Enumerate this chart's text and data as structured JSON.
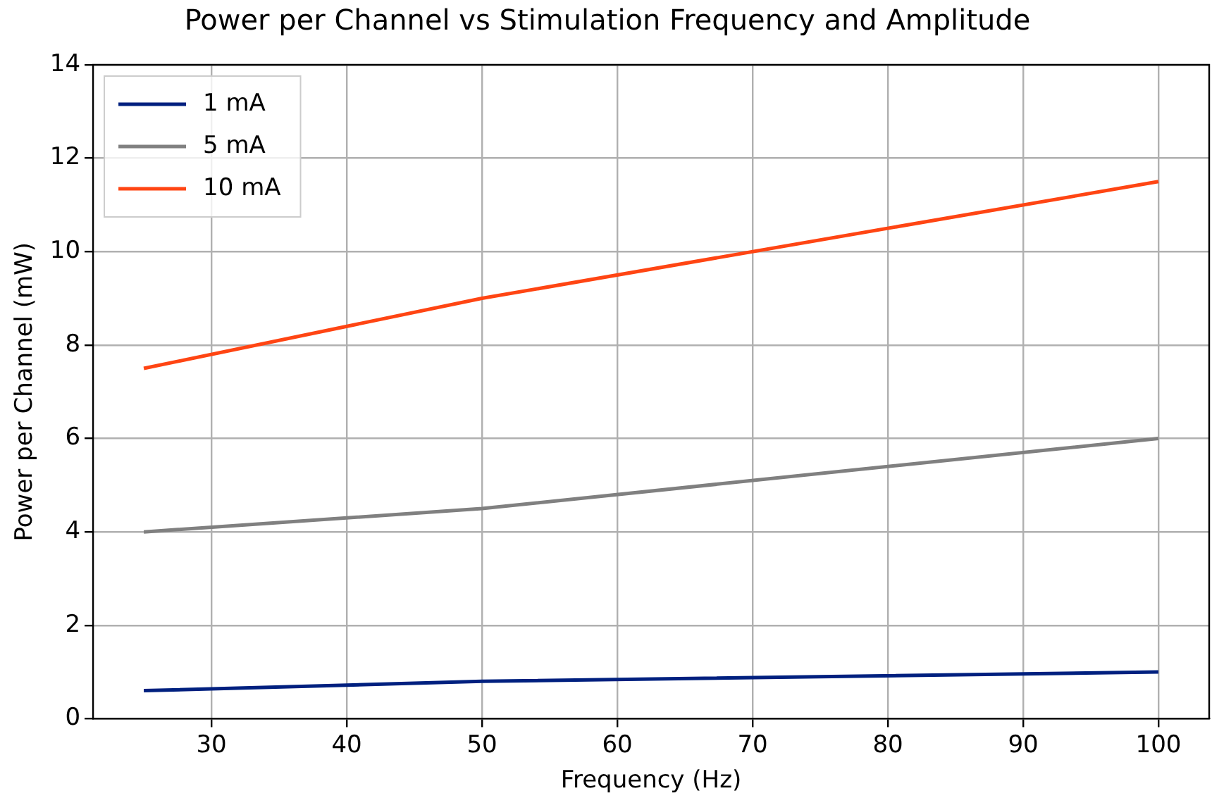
{
  "chart_data": {
    "type": "line",
    "title": "Power per Channel vs Stimulation Frequency and Amplitude",
    "xlabel": "Frequency (Hz)",
    "ylabel": "Power per Channel (mW)",
    "x": [
      25,
      50,
      100
    ],
    "series": [
      {
        "name": "1 mA",
        "color": "#00207f",
        "values": [
          0.6,
          0.8,
          1.0
        ]
      },
      {
        "name": "5 mA",
        "color": "#808080",
        "values": [
          4,
          4.5,
          6
        ]
      },
      {
        "name": "10 mA",
        "color": "#ff4513",
        "values": [
          7.5,
          9,
          11.5
        ]
      }
    ],
    "xlim": [
      21.25,
      103.75
    ],
    "xticks": [
      30,
      40,
      50,
      60,
      70,
      80,
      90,
      100
    ],
    "ylim": [
      0,
      14
    ],
    "yticks": [
      0,
      2,
      4,
      6,
      8,
      10,
      12,
      14
    ],
    "grid": true,
    "legend": "top left",
    "marker": "none",
    "line_style": "solid"
  }
}
